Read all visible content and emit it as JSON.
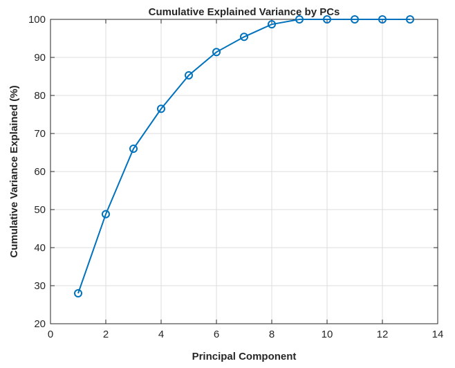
{
  "chart_data": {
    "type": "line",
    "title": "Cumulative Explained Variance by PCs",
    "xlabel": "Principal Component",
    "ylabel": "Cumulative Variance Explained (%)",
    "xlim": [
      0,
      14
    ],
    "ylim": [
      20,
      100
    ],
    "xticks": [
      "0",
      "2",
      "4",
      "6",
      "8",
      "10",
      "12",
      "14"
    ],
    "yticks": [
      "20",
      "30",
      "40",
      "50",
      "60",
      "70",
      "80",
      "90",
      "100"
    ],
    "grid": true,
    "marker": "circle",
    "series": [
      {
        "color": "#0072BD",
        "x": [
          1,
          2,
          3,
          4,
          5,
          6,
          7,
          8,
          9,
          10,
          11,
          12,
          13
        ],
        "y": [
          28,
          48.8,
          66,
          76.5,
          85.3,
          91.4,
          95.4,
          98.7,
          100,
          100,
          100,
          100,
          100
        ]
      }
    ]
  }
}
